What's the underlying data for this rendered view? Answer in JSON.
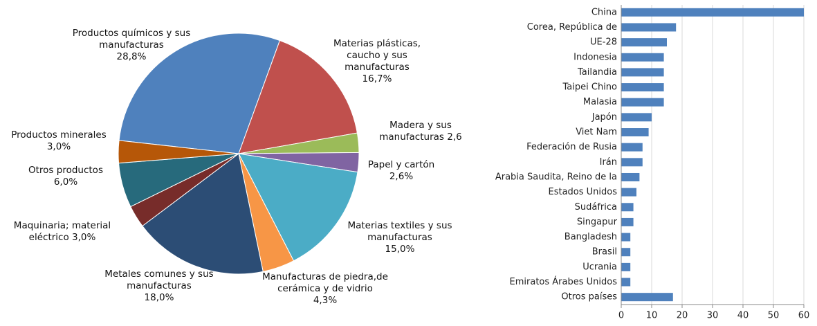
{
  "chart_data": [
    {
      "type": "pie",
      "categories": [
        "Productos químicos y sus manufacturas",
        "Materias plásticas, caucho y sus manufacturas",
        "Madera y sus manufacturas",
        "Papel y cartón",
        "Materias textiles y sus manufacturas",
        "Manufacturas de piedra,de cerámica y de vidrio",
        "Metales comunes y sus manufacturas",
        "Maquinaria; material eléctrico",
        "Otros productos",
        "Productos minerales"
      ],
      "values": [
        28.8,
        16.7,
        2.6,
        2.6,
        15.0,
        4.3,
        18.0,
        3.0,
        6.0,
        3.0
      ],
      "value_labels": [
        "28,8%",
        "16,7%",
        "2,6",
        "2,6%",
        "15,0%",
        "4,3%",
        "18,0%",
        "3,0%",
        "6,0%",
        "3,0%"
      ],
      "colors": [
        "#4f81bd",
        "#c0504d",
        "#9bbb59",
        "#8064a2",
        "#4bacc6",
        "#f79646",
        "#2c4d75",
        "#772c2a",
        "#276a7c",
        "#b65708"
      ]
    },
    {
      "type": "hbar",
      "categories": [
        "China",
        "Corea, República de",
        "UE-28",
        "Indonesia",
        "Tailandia",
        "Taipei Chino",
        "Malasia",
        "Japón",
        "Viet Nam",
        "Federación de Rusia",
        "Irán",
        "Arabia Saudita, Reino de la",
        "Estados Unidos",
        "Sudáfrica",
        "Singapur",
        "Bangladesh",
        "Brasil",
        "Ucrania",
        "Emiratos Árabes Unidos",
        "Otros países"
      ],
      "values": [
        62,
        18,
        15,
        14,
        14,
        14,
        14,
        10,
        9,
        7,
        7,
        6,
        5,
        4,
        4,
        3,
        3,
        3,
        3,
        17
      ],
      "color": "#4f81bd",
      "xlim": [
        0,
        60
      ],
      "xticks": [
        0,
        10,
        20,
        30,
        40,
        50,
        60
      ],
      "grid": true
    }
  ]
}
